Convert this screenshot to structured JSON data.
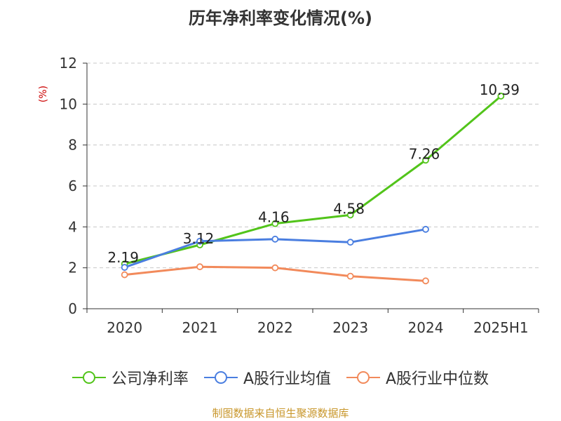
{
  "colors": {
    "green": "#52c41a",
    "blue": "#4a7ee0",
    "orange": "#f28a5b",
    "ylabel": "#cc0000",
    "source": "#c8962a",
    "grid": "#c8c8c8",
    "axis": "#333333"
  },
  "source_text": "制图数据来自恒生聚源数据库",
  "chart_data": {
    "type": "line",
    "title": "历年净利率变化情况(%)",
    "ylabel": "(%)",
    "xlabel": "",
    "categories": [
      "2020",
      "2021",
      "2022",
      "2023",
      "2024",
      "2025H1"
    ],
    "ylim": [
      0,
      12
    ],
    "yticks": [
      0,
      2,
      4,
      6,
      8,
      10,
      12
    ],
    "grid": true,
    "legend_position": "bottom",
    "series": [
      {
        "name": "公司净利率",
        "color": "#52c41a",
        "show_labels": true,
        "values": [
          2.19,
          3.12,
          4.16,
          4.58,
          7.26,
          10.39
        ]
      },
      {
        "name": "A股行业均值",
        "color": "#4a7ee0",
        "show_labels": false,
        "values": [
          2.02,
          3.3,
          3.4,
          3.25,
          3.88,
          null
        ]
      },
      {
        "name": "A股行业中位数",
        "color": "#f28a5b",
        "show_labels": false,
        "values": [
          1.66,
          2.05,
          2.0,
          1.59,
          1.36,
          null
        ]
      }
    ]
  }
}
